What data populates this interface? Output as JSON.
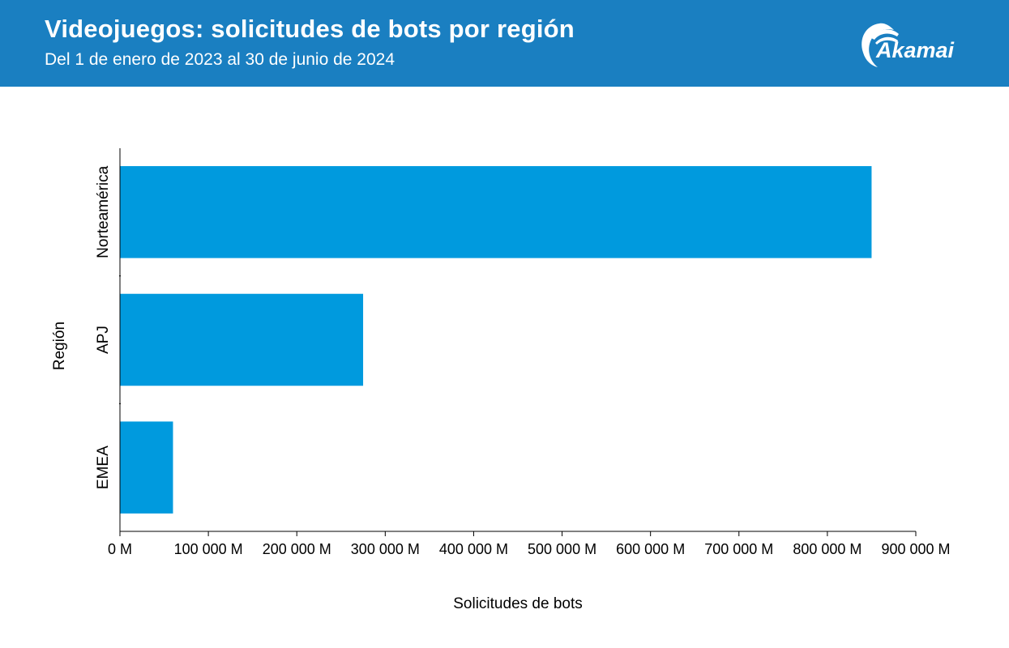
{
  "header": {
    "title": "Videojuegos: solicitudes de bots por región",
    "subtitle": "Del 1 de enero de 2023 al 30 de junio de 2024",
    "logo_text": "Akamai",
    "background_color": "#1a7fc1"
  },
  "chart_data": {
    "type": "bar",
    "orientation": "horizontal",
    "categories": [
      "Norteamérica",
      "APJ",
      "EMEA"
    ],
    "values": [
      850000,
      275000,
      60000
    ],
    "unit": "M",
    "xlabel": "Solicitudes de bots",
    "ylabel": "Región",
    "xlim": [
      0,
      900000
    ],
    "xticks": [
      0,
      100000,
      200000,
      300000,
      400000,
      500000,
      600000,
      700000,
      800000,
      900000
    ],
    "xtick_labels": [
      "0 M",
      "100 000 M",
      "200 000 M",
      "300 000 M",
      "400 000 M",
      "500 000 M",
      "600 000 M",
      "700 000 M",
      "800 000 M",
      "900 000 M"
    ],
    "grid": false,
    "bar_color": "#009ade"
  }
}
